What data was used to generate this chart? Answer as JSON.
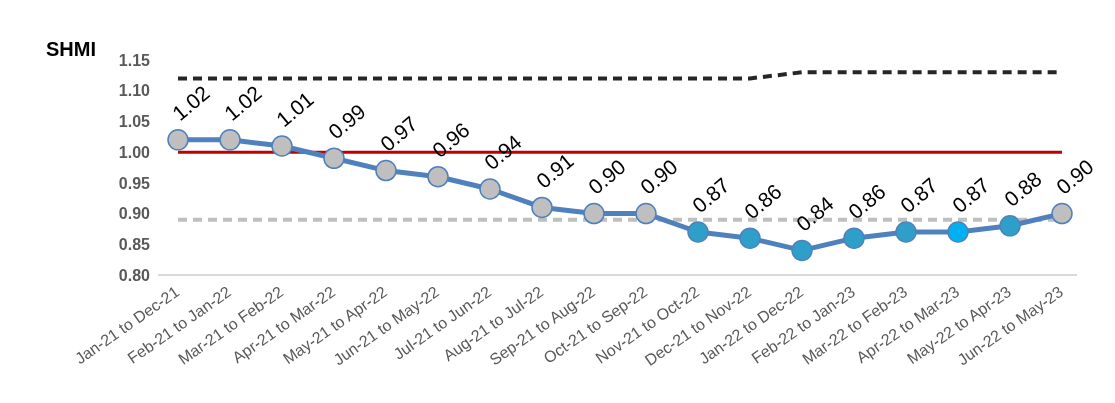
{
  "chart_data": {
    "type": "line",
    "ylabel": "SHMI",
    "categories": [
      "Jan-21 to Dec-21",
      "Feb-21 to Jan-22",
      "Mar-21 to Feb-22",
      "Apr-21 to Mar-22",
      "May-21 to Apr-22",
      "Jun-21 to May-22",
      "Jul-21 to Jun-22",
      "Aug-21 to Jul-22",
      "Sep-21 to Aug-22",
      "Oct-21 to Sep-22",
      "Nov-21 to Oct-22",
      "Dec-21 to Nov-22",
      "Jan-22 to Dec-22",
      "Feb-22 to Jan-23",
      "Mar-22 to Feb-23",
      "Apr-22 to Mar-23",
      "May-22 to Apr-23",
      "Jun-22 to May-23"
    ],
    "ylim": [
      0.8,
      1.15
    ],
    "yticks": [
      {
        "value": 0.8,
        "label": "0.80"
      },
      {
        "value": 0.85,
        "label": "0.85"
      },
      {
        "value": 0.9,
        "label": "0.90"
      },
      {
        "value": 0.95,
        "label": "0.95"
      },
      {
        "value": 1.0,
        "label": "1.00"
      },
      {
        "value": 1.05,
        "label": "1.05"
      },
      {
        "value": 1.1,
        "label": "1.10"
      },
      {
        "value": 1.15,
        "label": "1.15"
      }
    ],
    "grid": false,
    "legend": false,
    "ref_lines": [
      {
        "axis": "y",
        "value": 1.0,
        "color": "#c00000",
        "line_style": "solid"
      }
    ],
    "series": [
      {
        "color": "#262626",
        "line_style": "dashed",
        "marker": "none",
        "values": [
          1.12,
          1.12,
          1.12,
          1.12,
          1.12,
          1.12,
          1.12,
          1.12,
          1.12,
          1.12,
          1.12,
          1.12,
          1.13,
          1.13,
          1.13,
          1.13,
          1.13,
          1.13
        ]
      },
      {
        "color": "#bfbfbf",
        "line_style": "dashed",
        "marker": "none",
        "values": [
          0.89,
          0.89,
          0.89,
          0.89,
          0.89,
          0.89,
          0.89,
          0.89,
          0.89,
          0.89,
          0.89,
          0.89,
          0.89,
          0.89,
          0.89,
          0.89,
          0.89,
          0.89
        ]
      },
      {
        "color": "#4f81bd",
        "line_style": "solid",
        "marker": "circle",
        "values": [
          1.02,
          1.02,
          1.01,
          0.99,
          0.97,
          0.96,
          0.94,
          0.91,
          0.9,
          0.9,
          0.87,
          0.86,
          0.84,
          0.86,
          0.87,
          0.87,
          0.88,
          0.9
        ],
        "colors": [
          "#bfbfbf",
          "#bfbfbf",
          "#bfbfbf",
          "#bfbfbf",
          "#bfbfbf",
          "#bfbfbf",
          "#bfbfbf",
          "#bfbfbf",
          "#bfbfbf",
          "#bfbfbf",
          "#2e9fc9",
          "#2e9fc9",
          "#2e9fc9",
          "#2e9fc9",
          "#2e9fc9",
          "#00b0f0",
          "#2e9fc9",
          "#bfbfbf"
        ],
        "value_labels": [
          "1.02",
          "1.02",
          "1.01",
          "0.99",
          "0.97",
          "0.96",
          "0.94",
          "0.91",
          "0.90",
          "0.90",
          "0.87",
          "0.86",
          "0.84",
          "0.86",
          "0.87",
          "0.87",
          "0.88",
          "0.90"
        ]
      }
    ]
  }
}
